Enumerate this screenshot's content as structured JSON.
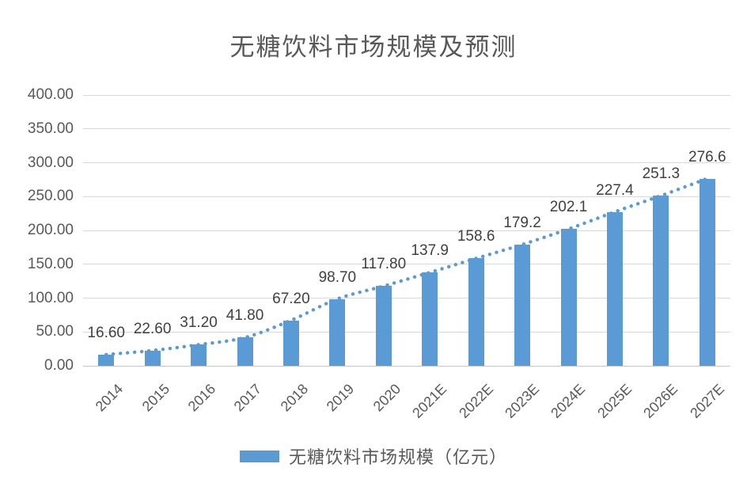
{
  "title": "无糖饮料市场规模及预测",
  "legend": {
    "label": "无糖饮料市场规模（亿元）"
  },
  "y_axis": {
    "ticks": [
      "400.00",
      "350.00",
      "300.00",
      "250.00",
      "200.00",
      "150.00",
      "100.00",
      "50.00",
      "0.00"
    ]
  },
  "chart_data": {
    "type": "bar",
    "title": "无糖饮料市场规模及预测",
    "categories": [
      "2014",
      "2015",
      "2016",
      "2017",
      "2018",
      "2019",
      "2020",
      "2021E",
      "2022E",
      "2023E",
      "2024E",
      "2025E",
      "2026E",
      "2027E"
    ],
    "values": [
      16.6,
      22.6,
      31.2,
      41.8,
      67.2,
      98.7,
      117.8,
      137.9,
      158.6,
      179.2,
      202.1,
      227.4,
      251.3,
      276.6
    ],
    "data_labels": [
      "16.60",
      "22.60",
      "31.20",
      "41.80",
      "67.20",
      "98.70",
      "117.80",
      "137.9",
      "158.6",
      "179.2",
      "202.1",
      "227.4",
      "251.3",
      "276.6"
    ],
    "series_name": "无糖饮料市场规模（亿元）",
    "xlabel": "",
    "ylabel": "",
    "ylim": [
      0,
      400
    ],
    "y_tick_step": 50,
    "grid": true,
    "legend_position": "bottom",
    "overlays": [
      "dotted-trendline-through-bar-tops"
    ],
    "colors": {
      "bar": "#5B9BD5",
      "trendline": "#5B9BD5",
      "gridline": "#D9D9D9",
      "axis_line": "#C6C6C6",
      "axis_text": "#595959",
      "data_label_text": "#404040",
      "title_text": "#595959",
      "background": "#FFFFFF"
    }
  }
}
